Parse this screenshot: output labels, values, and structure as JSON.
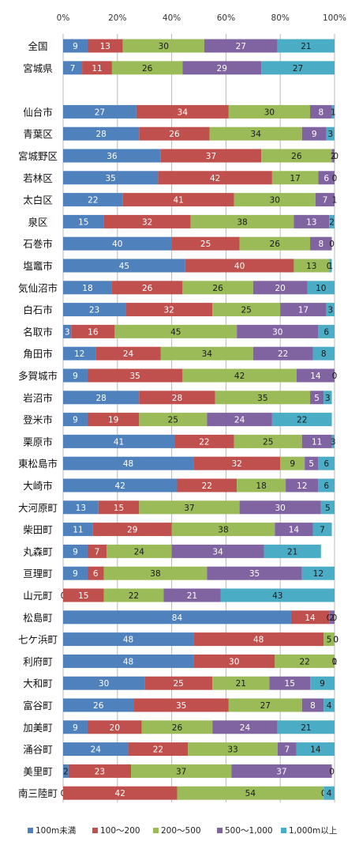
{
  "colors": {
    "under_100m": "#4F81BD",
    "r100_200": "#C0504D",
    "r200_500": "#9BBB59",
    "r500_1000": "#8064A2",
    "over_1000": "#4BACC6",
    "grid": "#b8b8b8",
    "label_light": "#ffffff",
    "label_dark": "#1a1a1a"
  },
  "chart_data": {
    "type": "bar",
    "orientation": "horizontal",
    "stacked": "percent",
    "xlim": [
      0,
      100
    ],
    "x_ticks": [
      "0%",
      "20%",
      "40%",
      "60%",
      "80%",
      "100%"
    ],
    "grid": true,
    "legend_position": "bottom",
    "categories": [
      "全国",
      "宮城県",
      "",
      "仙台市",
      "青葉区",
      "宮城野区",
      "若林区",
      "太白区",
      "泉区",
      "石巻市",
      "塩竈市",
      "気仙沼市",
      "白石市",
      "名取市",
      "角田市",
      "多賀城市",
      "岩沼市",
      "登米市",
      "栗原市",
      "東松島市",
      "大崎市",
      "大河原町",
      "柴田町",
      "丸森町",
      "亘理町",
      "山元町",
      "松島町",
      "七ケ浜町",
      "利府町",
      "大和町",
      "富谷町",
      "加美町",
      "涌谷町",
      "美里町",
      "南三陸町"
    ],
    "series": [
      {
        "name": "100m未満",
        "color_key": "under_100m",
        "values": [
          9,
          7,
          null,
          27,
          28,
          36,
          35,
          22,
          15,
          40,
          45,
          18,
          23,
          3,
          12,
          9,
          28,
          9,
          41,
          48,
          42,
          13,
          11,
          9,
          9,
          0,
          84,
          48,
          48,
          30,
          26,
          9,
          24,
          2,
          0
        ]
      },
      {
        "name": "100～200",
        "color_key": "r100_200",
        "values": [
          13,
          11,
          null,
          34,
          26,
          37,
          42,
          41,
          32,
          25,
          40,
          26,
          32,
          16,
          24,
          35,
          28,
          19,
          22,
          32,
          22,
          15,
          29,
          7,
          6,
          15,
          14,
          48,
          30,
          25,
          35,
          20,
          22,
          23,
          42
        ]
      },
      {
        "name": "200～500",
        "color_key": "r200_500",
        "values": [
          30,
          26,
          null,
          30,
          34,
          26,
          17,
          30,
          38,
          26,
          13,
          26,
          25,
          45,
          34,
          42,
          35,
          25,
          25,
          9,
          18,
          37,
          38,
          24,
          38,
          22,
          0,
          5,
          22,
          21,
          27,
          26,
          33,
          37,
          54
        ]
      },
      {
        "name": "500～1,000",
        "color_key": "r500_1000",
        "values": [
          27,
          29,
          null,
          8,
          9,
          2,
          6,
          7,
          13,
          8,
          0,
          20,
          17,
          30,
          22,
          14,
          5,
          24,
          11,
          5,
          12,
          30,
          14,
          34,
          35,
          21,
          2,
          0,
          0,
          15,
          8,
          24,
          7,
          37,
          0
        ]
      },
      {
        "name": "1,000m以上",
        "color_key": "over_1000",
        "values": [
          21,
          27,
          null,
          1,
          3,
          0,
          0,
          1,
          2,
          0,
          1,
          10,
          3,
          6,
          8,
          0,
          3,
          22,
          3,
          6,
          6,
          5,
          7,
          21,
          12,
          43,
          0,
          0,
          1,
          9,
          4,
          21,
          14,
          0,
          4
        ]
      }
    ]
  }
}
